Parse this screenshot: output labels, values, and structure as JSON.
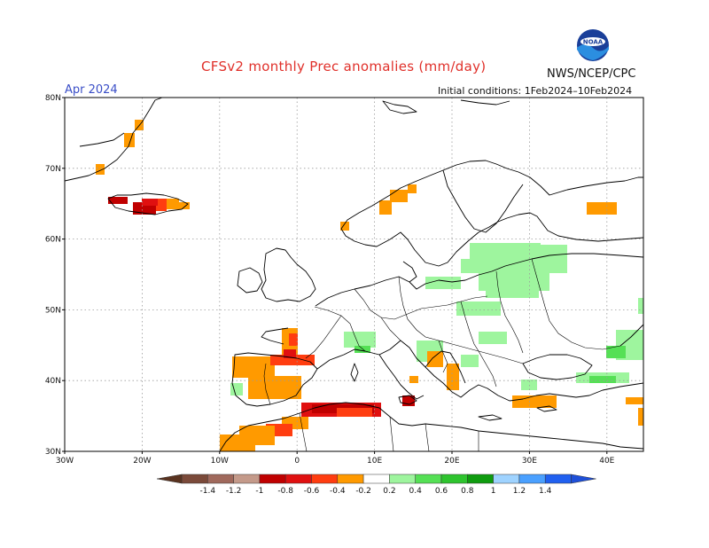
{
  "title": "CFSv2 monthly Prec anomalies (mm/day)",
  "agency": "NWS/NCEP/CPC",
  "logo_text": "NOAA",
  "month_label": "Apr 2024",
  "initial_conditions": "Initial conditions: 1Feb2024–10Feb2024",
  "colors": {
    "title": "#e0302a",
    "month": "#3a4ec7",
    "coast": "#000000",
    "grid": "#9a9a9a"
  },
  "map": {
    "lat_ticks": [
      "80N",
      "70N",
      "60N",
      "50N",
      "40N",
      "30N"
    ],
    "lon_ticks": [
      "30W",
      "20W",
      "10W",
      "0",
      "10E",
      "20E",
      "30E",
      "40E"
    ],
    "grid": "dotted"
  },
  "colorbar": {
    "labels": [
      "-1.4",
      "-1.2",
      "-1",
      "-0.8",
      "-0.6",
      "-0.4",
      "-0.2",
      "0.2",
      "0.4",
      "0.6",
      "0.8",
      "1",
      "1.2",
      "1.4"
    ],
    "colors": [
      "#7b4a3a",
      "#a0695c",
      "#c49a8a",
      "#c00000",
      "#e01010",
      "#ff3d10",
      "#ff9a00",
      "#ffffff",
      "#9ef59e",
      "#55e055",
      "#2ec42e",
      "#0f9c0f",
      "#9fd3ff",
      "#4aa0ff",
      "#2060f0"
    ],
    "low_end_color": "#5a3320",
    "high_end_color": "#1e4fd8"
  }
}
